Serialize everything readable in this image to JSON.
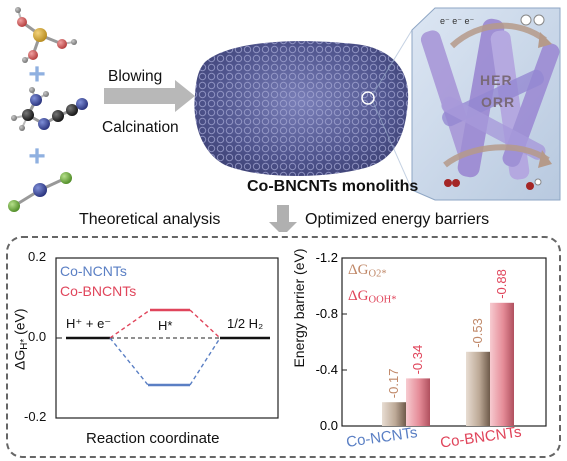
{
  "top": {
    "arrow_label_1": "Blowing",
    "arrow_label_2": "Calcination",
    "product_title": "Co-BNCNTs monoliths",
    "inset_label_1": "HER",
    "inset_label_2": "ORR",
    "analysis_left": "Theoretical analysis",
    "analysis_right": "Optimized energy barriers"
  },
  "left_panel": {
    "ylabel": "ΔG_H*(eV)",
    "xlabel": "Reaction coordinate",
    "ticks": [
      "0.2",
      "0.0",
      "-0.2"
    ],
    "legend": [
      {
        "name": "Co-NCNTs",
        "color": "#5a7fc4"
      },
      {
        "name": "Co-BNCNTs",
        "color": "#e0455b"
      }
    ],
    "state_left": "H⁺ + e⁻",
    "state_mid": "H*",
    "state_right": "1/2 H₂"
  },
  "chart_data": {
    "type": "bar",
    "ylabel": "Energy barrier (eV)",
    "ylim": [
      0,
      -1.2
    ],
    "ticks": [
      "-1.2",
      "-0.8",
      "-0.4",
      "0.0"
    ],
    "categories": [
      "Co-NCNTs",
      "Co-BNCNTs"
    ],
    "category_colors": [
      "#5a7fc4",
      "#e0455b"
    ],
    "series": [
      {
        "name": "ΔG_O2*",
        "values": [
          -0.17,
          -0.53
        ],
        "labels": [
          "-0.17",
          "-0.53"
        ],
        "color": "#c9b7a6"
      },
      {
        "name": "ΔG_OOH*",
        "values": [
          -0.34,
          -0.88
        ],
        "labels": [
          "-0.34",
          "-0.88"
        ],
        "color": "#e99aa4"
      }
    ],
    "label_colors": [
      "#c08868",
      "#e0455b"
    ]
  }
}
